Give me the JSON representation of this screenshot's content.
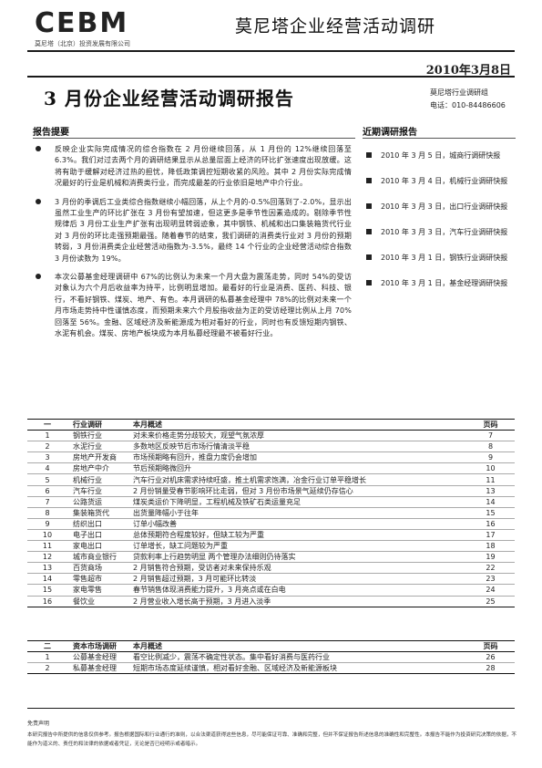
{
  "header": {
    "logo_text": "CEBM",
    "company_name": "莫尼塔（北京）投资发展有限公司",
    "title": "莫尼塔企业经营活动调研",
    "date": "2010年3月8日"
  },
  "report": {
    "title": "3 月份企业经营活动调研报告",
    "org": "莫尼塔行业调研组",
    "phone": "电话：010-84486606"
  },
  "summary": {
    "heading": "报告提要",
    "bullets": [
      "反映企业实际完成情况的综合指数在 2 月份继续回落，从 1 月份的 12%继续回落至 6.3%。我们对过去两个月的调研结果显示从总量层面上经济的环比扩张速度出现放缓。这将有助于缓解对经济过热的担忧，降低政策调控短期收紧的风险。其中 2 月份实际完成情况最好的行业是机械和消费类行业，而完成最差的行业依旧是地产中介行业。",
      "3 月份的季调后工业类综合指数继续小幅回落，从上个月的-0.5%回落到了-2.0%，显示出虽然工业生产的环比扩张在 3 月份有望加速，但这更多是季节性因素造成的。剔除季节性规律后 3 月份工业生产扩张有出现明显转弱迹象，其中钢铁、机械和出口集装箱货代行业对 3 月份的环比走强预期最强。随着春节的结束，我们调研的消费类行业对 3 月份的预期转弱，3 月份消费类企业经营活动指数为-3.5%，最终 14 个行业的企业经营活动综合指数 3 月份读数为 19%。",
      "本次公募基金经理调研中 67%的比例认为未来一个月大盘为震荡走势，同时 54%的受访对象认为六个月后收益率为持平，比例明显增加。最看好的行业是消费、医药、科技、银行，不看好钢铁、煤炭、地产、有色。本月调研的私募基金经理中 78%的比例对未来一个月市场走势持中性谨慎态度，而预期未来六个月股指收益为正的受访经理比例从上月 70%回落至 56%。金融、区域经济及新能源成为相对看好的行业，同时也有反馈短期内钢铁、水泥有机会。煤炭、房地产板块成为本月私募经理最不被看好行业。"
    ]
  },
  "recent": {
    "heading": "近期调研报告",
    "items": [
      "2010 年 3 月 5 日，城商行调研快报",
      "2010 年 3 月 4 日，机械行业调研快报",
      "2010 年 3 月 3 日，出口行业调研快报",
      "2010 年 3 月 3 日，汽车行业调研快报",
      "2010 年 3 月 1 日，钢铁行业调研快报",
      "2010 年 3 月 1 日，基金经理调研快报"
    ]
  },
  "industry_table": {
    "headers": [
      "一",
      "行业调研",
      "本月概述",
      "页码"
    ],
    "rows": [
      [
        "1",
        "钢铁行业",
        "对未来价格走势分歧较大，观望气氛浓厚",
        "7"
      ],
      [
        "2",
        "水泥行业",
        "多数地区反映节后市场行情清淡平稳",
        "8"
      ],
      [
        "3",
        "房地产开发商",
        "市场预期略有回升，推盘力度仍会增加",
        "9"
      ],
      [
        "4",
        "房地产中介",
        "节后预期略微回升",
        "10"
      ],
      [
        "5",
        "机械行业",
        "汽车行业对机床需求持续旺盛，推土机需求饱满，冶金行业订单平稳增长",
        "11"
      ],
      [
        "6",
        "汽车行业",
        "2 月份销量受春节影响环比走弱，但对 3 月份市场景气延续仍存信心",
        "13"
      ],
      [
        "7",
        "公路货运",
        "煤炭类运价下降明显，工程机械及铁矿石类运量充足",
        "14"
      ],
      [
        "8",
        "集装箱货代",
        "出货量降幅小于往年",
        "15"
      ],
      [
        "9",
        "纺织出口",
        "订单小幅改善",
        "16"
      ],
      [
        "10",
        "电子出口",
        "总体预期符合程度较好，但缺工较为严重",
        "17"
      ],
      [
        "11",
        "家电出口",
        "订单增长，缺工问题较为严重",
        "18"
      ],
      [
        "12",
        "城市商业银行",
        "贷款利率上行趋势明显 两个管理办法细则仍待落实",
        "19"
      ],
      [
        "13",
        "百货商场",
        "2 月销售符合预期，受访者对未来保持乐观",
        "22"
      ],
      [
        "14",
        "零售超市",
        "2 月销售超过预期，3 月可能环比转淡",
        "23"
      ],
      [
        "15",
        "家电零售",
        "春节销售体现消费能力提升，3 月亮点或在白电",
        "24"
      ],
      [
        "16",
        "餐饮业",
        "2 月营业收入增长高于预期，3 月进入淡季",
        "25"
      ]
    ]
  },
  "capital_table": {
    "headers": [
      "二",
      "资本市场调研",
      "本月概述",
      "页码"
    ],
    "rows": [
      [
        "1",
        "公募基金经理",
        "看空比例减少，震荡不确定性状态。集中看好消费与医药行业",
        "26"
      ],
      [
        "2",
        "私募基金经理",
        "短期市场态度延续谨慎，相对看好金融、区域经济及新能源板块",
        "28"
      ]
    ]
  },
  "disclaimer": {
    "title": "免责声明",
    "text": "本研究报告中所提供的信息仅供参考。报告根据国际和行业通行的准则，以合法渠道获得这些信息，尽可能保证可靠、准确和完整，但并不保证报告所述信息的准确性和完整性。本报告不能作为投资研究决策的依据，不能作为道义的、责任的和法律的依据或者凭证，无论是否已经明示或者暗示。"
  }
}
